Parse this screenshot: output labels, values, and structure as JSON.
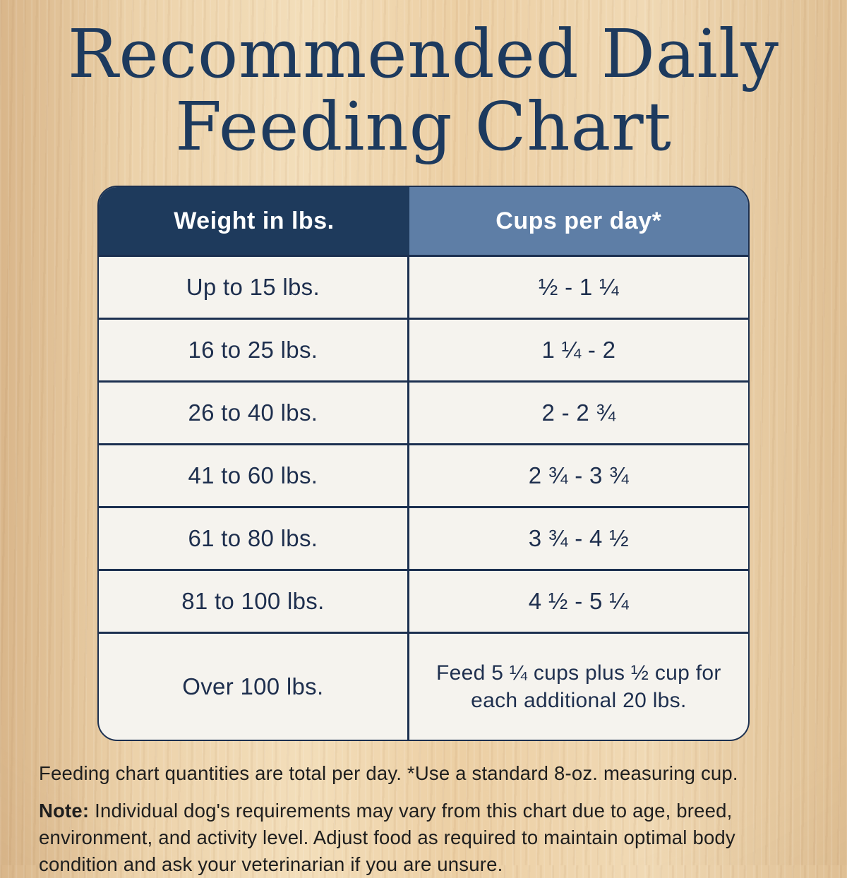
{
  "title": {
    "line1": "Recommended Daily",
    "line2": "Feeding Chart"
  },
  "colors": {
    "title_navy": "#1d3a5e",
    "header_left_bg": "#1e3a5c",
    "header_right_bg": "#5e7ea6",
    "row_bg": "#f5f3ee",
    "divider": "#1c3050",
    "body_text": "#1e2f4e",
    "wood_background": "#ead0a9"
  },
  "chart_data": {
    "type": "table",
    "title": "Recommended Daily Feeding Chart",
    "columns": [
      "Weight in lbs.",
      "Cups per day*"
    ],
    "rows": [
      [
        "Up to 15 lbs.",
        "½ - 1 ¼"
      ],
      [
        "16 to 25 lbs.",
        "1 ¼ - 2"
      ],
      [
        "26 to 40 lbs.",
        "2 - 2 ¾"
      ],
      [
        "41 to 60 lbs.",
        "2 ¾ - 3 ¾"
      ],
      [
        "61 to 80 lbs.",
        "3 ¾ - 4 ½"
      ],
      [
        "81 to 100 lbs.",
        "4 ½ - 5 ¼"
      ],
      [
        "Over 100 lbs.",
        "Feed 5 ¼ cups plus ½ cup for each additional 20 lbs."
      ]
    ],
    "cups_per_day_numeric": [
      {
        "weight_range_lbs": [
          0,
          15
        ],
        "cups_min": 0.5,
        "cups_max": 1.25
      },
      {
        "weight_range_lbs": [
          16,
          25
        ],
        "cups_min": 1.25,
        "cups_max": 2
      },
      {
        "weight_range_lbs": [
          26,
          40
        ],
        "cups_min": 2,
        "cups_max": 2.75
      },
      {
        "weight_range_lbs": [
          41,
          60
        ],
        "cups_min": 2.75,
        "cups_max": 3.75
      },
      {
        "weight_range_lbs": [
          61,
          80
        ],
        "cups_min": 3.75,
        "cups_max": 4.5
      },
      {
        "weight_range_lbs": [
          81,
          100
        ],
        "cups_min": 4.5,
        "cups_max": 5.25
      },
      {
        "weight_range_lbs": [
          100,
          null
        ],
        "rule": "Feed 5.25 cups plus 0.5 cup for each additional 20 lbs."
      }
    ]
  },
  "footer": {
    "line1": "Feeding chart quantities are total per day. *Use a standard 8-oz. measuring cup.",
    "note_label": "Note:",
    "note_text": " Individual dog's requirements may vary from this chart due to age, breed, environment, and activity level. Adjust food as required to maintain optimal body condition and ask your veterinarian if you are unsure."
  }
}
